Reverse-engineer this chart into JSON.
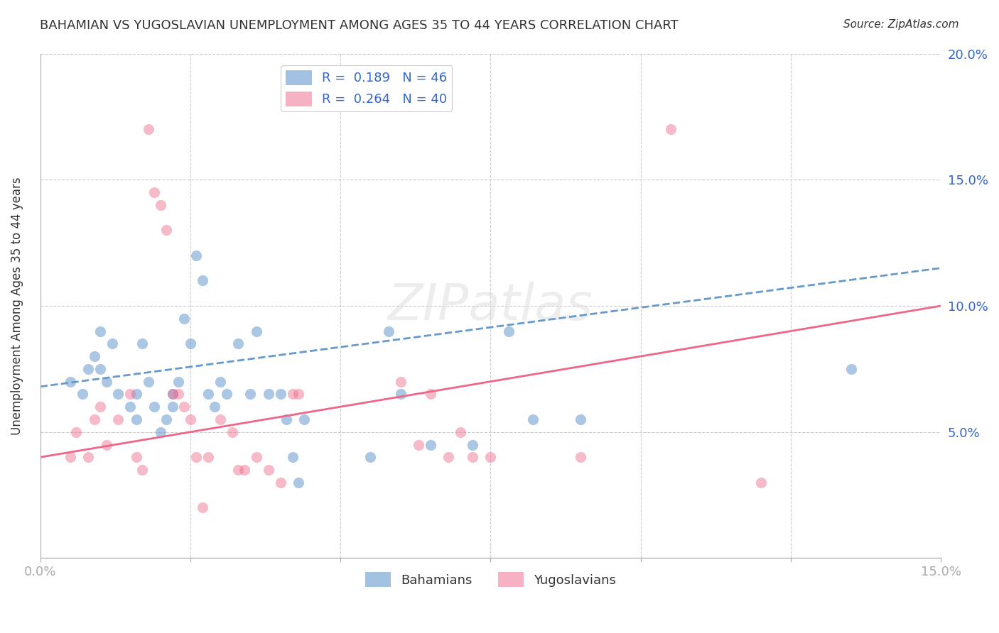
{
  "title": "BAHAMIAN VS YUGOSLAVIAN UNEMPLOYMENT AMONG AGES 35 TO 44 YEARS CORRELATION CHART",
  "source": "Source: ZipAtlas.com",
  "xlabel": "",
  "ylabel": "Unemployment Among Ages 35 to 44 years",
  "xlim": [
    0,
    0.15
  ],
  "ylim": [
    0,
    0.2
  ],
  "xticks": [
    0.0,
    0.025,
    0.05,
    0.075,
    0.1,
    0.125,
    0.15
  ],
  "xtick_labels": [
    "0.0%",
    "",
    "",
    "",
    "",
    "",
    "15.0%"
  ],
  "yticks": [
    0.0,
    0.05,
    0.1,
    0.15,
    0.2
  ],
  "ytick_labels": [
    "",
    "5.0%",
    "10.0%",
    "15.0%",
    "20.0%"
  ],
  "grid_color": "#cccccc",
  "background_color": "#ffffff",
  "watermark": "ZIPatlas",
  "legend_R1": "R =  0.189",
  "legend_N1": "N = 46",
  "legend_R2": "R =  0.264",
  "legend_N2": "N = 40",
  "legend_label1": "Bahamians",
  "legend_label2": "Yugoslavians",
  "blue_color": "#6699cc",
  "pink_color": "#ee6688",
  "blue_scatter": [
    [
      0.005,
      0.07
    ],
    [
      0.007,
      0.065
    ],
    [
      0.008,
      0.075
    ],
    [
      0.009,
      0.08
    ],
    [
      0.01,
      0.09
    ],
    [
      0.01,
      0.075
    ],
    [
      0.011,
      0.07
    ],
    [
      0.012,
      0.085
    ],
    [
      0.013,
      0.065
    ],
    [
      0.015,
      0.06
    ],
    [
      0.016,
      0.055
    ],
    [
      0.016,
      0.065
    ],
    [
      0.017,
      0.085
    ],
    [
      0.018,
      0.07
    ],
    [
      0.019,
      0.06
    ],
    [
      0.02,
      0.05
    ],
    [
      0.021,
      0.055
    ],
    [
      0.022,
      0.06
    ],
    [
      0.022,
      0.065
    ],
    [
      0.023,
      0.07
    ],
    [
      0.024,
      0.095
    ],
    [
      0.025,
      0.085
    ],
    [
      0.026,
      0.12
    ],
    [
      0.027,
      0.11
    ],
    [
      0.028,
      0.065
    ],
    [
      0.029,
      0.06
    ],
    [
      0.03,
      0.07
    ],
    [
      0.031,
      0.065
    ],
    [
      0.033,
      0.085
    ],
    [
      0.035,
      0.065
    ],
    [
      0.036,
      0.09
    ],
    [
      0.038,
      0.065
    ],
    [
      0.04,
      0.065
    ],
    [
      0.041,
      0.055
    ],
    [
      0.042,
      0.04
    ],
    [
      0.043,
      0.03
    ],
    [
      0.044,
      0.055
    ],
    [
      0.055,
      0.04
    ],
    [
      0.058,
      0.09
    ],
    [
      0.06,
      0.065
    ],
    [
      0.065,
      0.045
    ],
    [
      0.072,
      0.045
    ],
    [
      0.078,
      0.09
    ],
    [
      0.082,
      0.055
    ],
    [
      0.09,
      0.055
    ],
    [
      0.135,
      0.075
    ]
  ],
  "pink_scatter": [
    [
      0.005,
      0.04
    ],
    [
      0.006,
      0.05
    ],
    [
      0.008,
      0.04
    ],
    [
      0.009,
      0.055
    ],
    [
      0.01,
      0.06
    ],
    [
      0.011,
      0.045
    ],
    [
      0.013,
      0.055
    ],
    [
      0.015,
      0.065
    ],
    [
      0.016,
      0.04
    ],
    [
      0.017,
      0.035
    ],
    [
      0.018,
      0.17
    ],
    [
      0.019,
      0.145
    ],
    [
      0.02,
      0.14
    ],
    [
      0.021,
      0.13
    ],
    [
      0.022,
      0.065
    ],
    [
      0.023,
      0.065
    ],
    [
      0.024,
      0.06
    ],
    [
      0.025,
      0.055
    ],
    [
      0.026,
      0.04
    ],
    [
      0.027,
      0.02
    ],
    [
      0.028,
      0.04
    ],
    [
      0.03,
      0.055
    ],
    [
      0.032,
      0.05
    ],
    [
      0.033,
      0.035
    ],
    [
      0.034,
      0.035
    ],
    [
      0.036,
      0.04
    ],
    [
      0.038,
      0.035
    ],
    [
      0.04,
      0.03
    ],
    [
      0.042,
      0.065
    ],
    [
      0.043,
      0.065
    ],
    [
      0.06,
      0.07
    ],
    [
      0.063,
      0.045
    ],
    [
      0.065,
      0.065
    ],
    [
      0.068,
      0.04
    ],
    [
      0.07,
      0.05
    ],
    [
      0.072,
      0.04
    ],
    [
      0.075,
      0.04
    ],
    [
      0.09,
      0.04
    ],
    [
      0.105,
      0.17
    ],
    [
      0.12,
      0.03
    ]
  ],
  "blue_trendline": [
    [
      0.0,
      0.068
    ],
    [
      0.15,
      0.115
    ]
  ],
  "pink_trendline": [
    [
      0.0,
      0.04
    ],
    [
      0.15,
      0.1
    ]
  ]
}
